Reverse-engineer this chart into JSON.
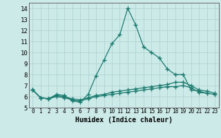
{
  "xlabel": "Humidex (Indice chaleur)",
  "bg_color": "#cceae8",
  "grid_color": "#b0d4d2",
  "line_color": "#1a7a6e",
  "x": [
    0,
    1,
    2,
    3,
    4,
    5,
    6,
    7,
    8,
    9,
    10,
    11,
    12,
    13,
    14,
    15,
    16,
    17,
    18,
    19,
    20,
    21,
    22,
    23
  ],
  "line1": [
    6.6,
    5.9,
    5.8,
    6.2,
    6.1,
    5.6,
    5.5,
    6.2,
    7.9,
    9.3,
    10.8,
    11.6,
    14.0,
    12.5,
    10.5,
    10.0,
    9.5,
    8.5,
    8.0,
    8.0,
    6.6,
    6.5,
    6.3,
    null
  ],
  "line2": [
    6.6,
    5.9,
    5.8,
    6.1,
    6.0,
    5.8,
    5.7,
    5.9,
    6.1,
    6.2,
    6.4,
    6.5,
    6.6,
    6.7,
    6.8,
    6.9,
    7.0,
    7.1,
    7.3,
    7.3,
    7.0,
    6.6,
    6.5,
    6.3
  ],
  "line3": [
    6.6,
    5.9,
    5.8,
    6.0,
    5.9,
    5.7,
    5.6,
    5.8,
    6.0,
    6.1,
    6.2,
    6.3,
    6.4,
    6.5,
    6.6,
    6.7,
    6.8,
    6.9,
    6.9,
    7.0,
    6.8,
    6.4,
    6.3,
    6.2
  ],
  "ylim": [
    5.0,
    14.5
  ],
  "yticks": [
    5,
    6,
    7,
    8,
    9,
    10,
    11,
    12,
    13,
    14
  ],
  "xlim": [
    -0.5,
    23.5
  ]
}
